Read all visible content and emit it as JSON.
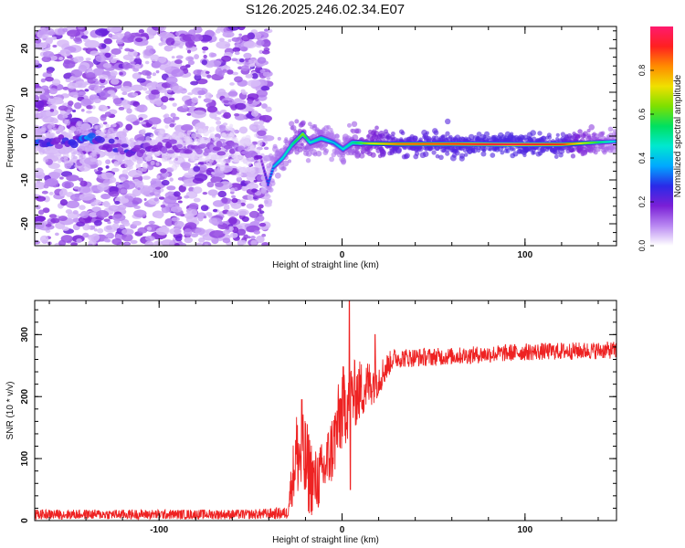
{
  "title": "S126.2025.246.02.34.E07",
  "chart_data": [
    {
      "type": "heatmap",
      "xlabel": "Height of straight line (km)",
      "ylabel": "Frequency (Hz)",
      "xlim": [
        -168,
        150
      ],
      "ylim": [
        -25,
        25
      ],
      "x_ticks": [
        -100,
        0,
        100
      ],
      "y_ticks": [
        -20,
        -10,
        0,
        10,
        20
      ],
      "colorbar": {
        "label": "Normalized spectral amplitude",
        "range": [
          0.0,
          1.0
        ],
        "ticks": [
          "0.0",
          "0.2",
          "0.4",
          "0.6",
          "0.8"
        ],
        "colors": [
          "#ffffff",
          "#b988f2",
          "#7a1fd6",
          "#2a2ae8",
          "#00a8ff",
          "#00e8d0",
          "#00e060",
          "#7ee000",
          "#f0e000",
          "#ff8c00",
          "#ff2020",
          "#ff1a6e"
        ]
      },
      "noise_region": {
        "x_start": -168,
        "x_end": -40
      },
      "signal_track": [
        {
          "x": -168,
          "f": -1.5,
          "a": 0.25
        },
        {
          "x": -150,
          "f": -1.5,
          "a": 0.2
        },
        {
          "x": -140,
          "f": -0.5,
          "a": 0.3
        },
        {
          "x": -130,
          "f": -2.0,
          "a": 0.18
        },
        {
          "x": -115,
          "f": -3.5,
          "a": 0.22
        },
        {
          "x": -100,
          "f": -2.5,
          "a": 0.15
        },
        {
          "x": -80,
          "f": -3.0,
          "a": 0.12
        },
        {
          "x": -60,
          "f": -2.5,
          "a": 0.12
        },
        {
          "x": -45,
          "f": -5.0,
          "a": 0.15
        },
        {
          "x": -41,
          "f": -11.0,
          "a": 0.3
        },
        {
          "x": -38,
          "f": -7.0,
          "a": 0.4
        },
        {
          "x": -33,
          "f": -5.0,
          "a": 0.45
        },
        {
          "x": -28,
          "f": -2.0,
          "a": 0.5
        },
        {
          "x": -22,
          "f": 0.5,
          "a": 0.65
        },
        {
          "x": -18,
          "f": -1.5,
          "a": 0.45
        },
        {
          "x": -12,
          "f": -0.5,
          "a": 0.5
        },
        {
          "x": -5,
          "f": -1.5,
          "a": 0.4
        },
        {
          "x": 0,
          "f": -3.0,
          "a": 0.45
        },
        {
          "x": 5,
          "f": -1.5,
          "a": 0.5
        },
        {
          "x": 15,
          "f": -1.7,
          "a": 0.7
        },
        {
          "x": 30,
          "f": -1.8,
          "a": 0.85
        },
        {
          "x": 60,
          "f": -1.8,
          "a": 0.9
        },
        {
          "x": 90,
          "f": -1.9,
          "a": 0.95
        },
        {
          "x": 120,
          "f": -1.9,
          "a": 0.9
        },
        {
          "x": 140,
          "f": -1.4,
          "a": 0.55
        },
        {
          "x": 150,
          "f": -1.2,
          "a": 0.4
        }
      ]
    },
    {
      "type": "line",
      "xlabel": "Height of straight line (km)",
      "ylabel": "SNR (10 * v/v)",
      "xlim": [
        -168,
        150
      ],
      "ylim": [
        0,
        355
      ],
      "x_ticks": [
        -100,
        0,
        100
      ],
      "y_ticks": [
        0,
        100,
        200,
        300
      ],
      "color": "#ee2222",
      "envelope": [
        {
          "x": -168,
          "y": 10,
          "noise": 8
        },
        {
          "x": -50,
          "y": 10,
          "noise": 8
        },
        {
          "x": -30,
          "y": 12,
          "noise": 10
        },
        {
          "x": -25,
          "y": 110,
          "noise": 70
        },
        {
          "x": -20,
          "y": 90,
          "noise": 80
        },
        {
          "x": -15,
          "y": 60,
          "noise": 55
        },
        {
          "x": -10,
          "y": 80,
          "noise": 50
        },
        {
          "x": -5,
          "y": 120,
          "noise": 60
        },
        {
          "x": 0,
          "y": 180,
          "noise": 70
        },
        {
          "x": 5,
          "y": 200,
          "noise": 60
        },
        {
          "x": 10,
          "y": 210,
          "noise": 50
        },
        {
          "x": 20,
          "y": 230,
          "noise": 30
        },
        {
          "x": 28,
          "y": 262,
          "noise": 16
        },
        {
          "x": 60,
          "y": 265,
          "noise": 14
        },
        {
          "x": 100,
          "y": 272,
          "noise": 14
        },
        {
          "x": 150,
          "y": 275,
          "noise": 14
        }
      ],
      "spikes": [
        {
          "x": 4,
          "y": 355
        },
        {
          "x": 4.5,
          "y": 50
        },
        {
          "x": -22,
          "y": 195
        },
        {
          "x": 18,
          "y": 300
        }
      ]
    }
  ]
}
